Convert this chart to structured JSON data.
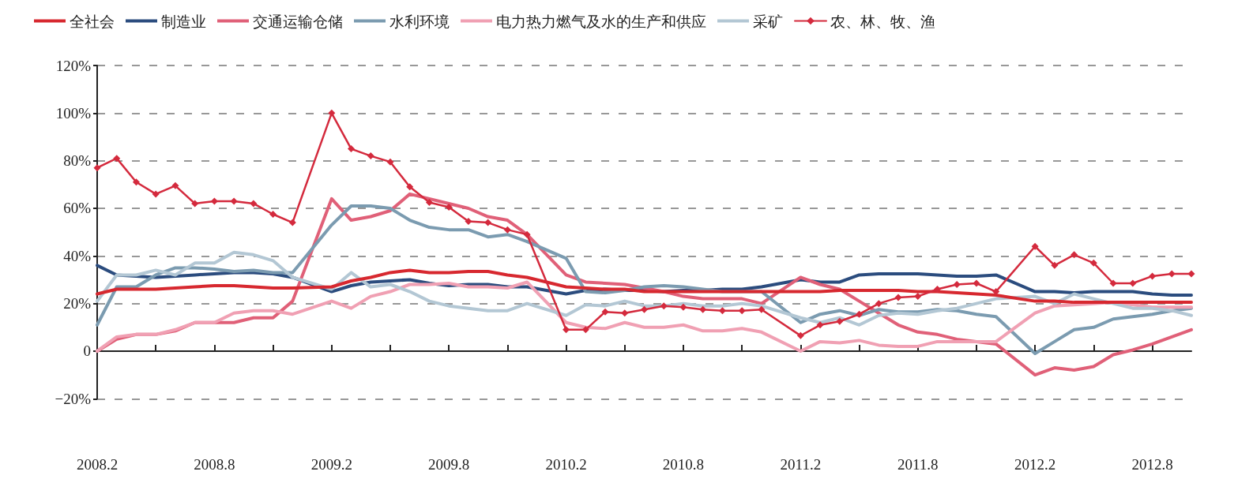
{
  "chart_data": {
    "type": "line",
    "x": [
      "2008-02",
      "2008-03",
      "2008-04",
      "2008-05",
      "2008-06",
      "2008-07",
      "2008-08",
      "2008-09",
      "2008-10",
      "2008-11",
      "2008-12",
      "2009-02",
      "2009-03",
      "2009-04",
      "2009-05",
      "2009-06",
      "2009-07",
      "2009-08",
      "2009-09",
      "2009-10",
      "2009-11",
      "2009-12",
      "2010-02",
      "2010-03",
      "2010-04",
      "2010-05",
      "2010-06",
      "2010-07",
      "2010-08",
      "2010-09",
      "2010-10",
      "2010-11",
      "2010-12",
      "2011-02",
      "2011-03",
      "2011-04",
      "2011-05",
      "2011-06",
      "2011-07",
      "2011-08",
      "2011-09",
      "2011-10",
      "2011-11",
      "2011-12",
      "2012-02",
      "2012-03",
      "2012-04",
      "2012-05",
      "2012-06",
      "2012-07",
      "2012-08",
      "2012-09",
      "2012-10"
    ],
    "series": [
      {
        "name": "全社会",
        "color": "#d7282f",
        "marker": "none",
        "values": [
          24,
          26,
          26,
          26,
          26.5,
          27,
          27.5,
          27.5,
          27,
          26.5,
          26.5,
          27,
          29.5,
          31,
          33,
          34,
          33,
          33,
          33.5,
          33.5,
          32,
          31,
          27,
          26.5,
          26,
          26,
          25,
          25,
          25,
          25,
          25,
          25,
          25,
          25,
          25,
          25.5,
          25.5,
          25.5,
          25.5,
          25,
          25,
          24.5,
          24,
          23.5,
          21,
          21,
          20.5,
          20.5,
          20.5,
          20.5,
          20.5,
          20.5,
          20.5
        ]
      },
      {
        "name": "制造业",
        "color": "#2b4c7e",
        "marker": "none",
        "values": [
          36,
          32,
          31.5,
          31,
          31.5,
          32,
          32.5,
          33,
          33,
          32.5,
          31,
          25,
          27.5,
          29,
          29.5,
          30,
          28.5,
          27.5,
          28,
          28,
          27,
          27,
          24,
          25.5,
          26,
          25.5,
          25.5,
          25,
          25.5,
          25.5,
          26,
          26,
          27,
          30,
          29,
          29,
          32,
          32.5,
          32.5,
          32.5,
          32,
          31.5,
          31.5,
          32,
          25,
          25,
          24.5,
          25,
          25,
          25,
          24,
          23.5,
          23.5
        ]
      },
      {
        "name": "交通运输仓储",
        "color": "#e06078",
        "marker": "none",
        "values": [
          0,
          5,
          7,
          7,
          8.5,
          12,
          12,
          12,
          14,
          14,
          21,
          64,
          55,
          56.5,
          59,
          66,
          64,
          62,
          60,
          56.5,
          55,
          49,
          32,
          29,
          28.5,
          28,
          26.5,
          25,
          23,
          22,
          22,
          22,
          20,
          31,
          28,
          26,
          21,
          16,
          11,
          8,
          7,
          5,
          4,
          3,
          -10,
          -7,
          -8,
          -6.5,
          -1.5,
          0.5,
          3,
          6,
          9
        ]
      },
      {
        "name": "水利环境",
        "color": "#7b9bb0",
        "marker": "none",
        "values": [
          11,
          27,
          27,
          32,
          35,
          35,
          34.5,
          33.5,
          34,
          33,
          33,
          53,
          61,
          61,
          60,
          55,
          52,
          51,
          51,
          48,
          49,
          46,
          39,
          25,
          24.5,
          25.5,
          27,
          27.5,
          27,
          26,
          25,
          25,
          25,
          12,
          15.5,
          17,
          15,
          17.5,
          16.5,
          16.5,
          17.5,
          17,
          15.5,
          14.5,
          -1,
          4,
          9,
          10,
          13.5,
          14.5,
          15.5,
          17,
          18
        ]
      },
      {
        "name": "电力热力燃气及水的生产和供应",
        "color": "#f0a0b3",
        "marker": "none",
        "values": [
          0,
          6,
          7,
          7,
          9,
          12,
          12,
          16,
          17,
          17,
          15.5,
          21,
          18,
          23,
          25,
          28,
          28,
          28.5,
          27,
          27,
          26.5,
          29,
          12,
          10,
          9.5,
          12,
          10,
          10,
          11,
          8.5,
          8.5,
          9.5,
          8,
          0,
          4,
          3.5,
          4.5,
          2.5,
          2,
          2,
          4,
          4,
          4,
          4,
          16,
          19,
          19.5,
          20,
          20.5,
          19.5,
          18.5,
          18.5,
          18.5
        ]
      },
      {
        "name": "采矿",
        "color": "#b3c7d4",
        "marker": "none",
        "values": [
          21,
          32,
          32,
          34,
          32,
          37,
          37,
          41.5,
          40.5,
          38,
          31,
          26,
          33,
          27,
          28,
          25,
          21,
          19,
          18,
          17,
          17,
          20,
          15,
          19.5,
          19,
          21,
          19,
          19,
          20,
          19,
          19,
          20,
          19,
          14,
          12,
          14,
          11,
          15,
          16,
          15.5,
          17,
          18,
          20,
          22,
          23,
          20,
          24,
          22,
          20,
          18,
          18,
          17,
          15
        ]
      },
      {
        "name": "农、林、牧、渔",
        "color": "#d42a3d",
        "marker": "diamond",
        "values": [
          77,
          81,
          71,
          66,
          69.5,
          62,
          63,
          63,
          62,
          57.5,
          54,
          100,
          85,
          82,
          79.5,
          69,
          62.5,
          60.5,
          54.5,
          54,
          51,
          49,
          9,
          9,
          16.5,
          16,
          17.5,
          19,
          18.5,
          17.5,
          17,
          17,
          17.5,
          6.5,
          11,
          12.5,
          15.5,
          20,
          22.5,
          23,
          26,
          28,
          28.5,
          25,
          44,
          36,
          40.5,
          37,
          28.5,
          28.5,
          31.5,
          32.5,
          32.5
        ]
      }
    ],
    "xlim": [
      "2008-02",
      "2012-10"
    ],
    "xticks": [
      {
        "value": "2008-02",
        "label": "2008.2"
      },
      {
        "value": "2008-05",
        "label": null
      },
      {
        "value": "2008-08",
        "label": "2008.8"
      },
      {
        "value": "2008-11",
        "label": null
      },
      {
        "value": "2009-02",
        "label": "2009.2"
      },
      {
        "value": "2009-05",
        "label": null
      },
      {
        "value": "2009-08",
        "label": "2009.8"
      },
      {
        "value": "2009-11",
        "label": null
      },
      {
        "value": "2010-02",
        "label": "2010.2"
      },
      {
        "value": "2010-05",
        "label": null
      },
      {
        "value": "2010-08",
        "label": "2010.8"
      },
      {
        "value": "2010-11",
        "label": null
      },
      {
        "value": "2011-02",
        "label": "2011.2"
      },
      {
        "value": "2011-05",
        "label": null
      },
      {
        "value": "2011-08",
        "label": "2011.8"
      },
      {
        "value": "2011-11",
        "label": null
      },
      {
        "value": "2012-02",
        "label": "2012.2"
      },
      {
        "value": "2012-05",
        "label": null
      },
      {
        "value": "2012-08",
        "label": "2012.8"
      }
    ],
    "ylim": [
      -20,
      120
    ],
    "yticks": [
      {
        "value": -20,
        "label": "−20%"
      },
      0,
      {
        "value": 20,
        "label": "20%"
      },
      {
        "value": 40,
        "label": "40%"
      },
      {
        "value": 60,
        "label": "60%"
      },
      {
        "value": 80,
        "label": "80%"
      },
      {
        "value": 100,
        "label": "100%"
      },
      {
        "value": 120,
        "label": "120%"
      }
    ],
    "grid": "y",
    "legend": "top",
    "line_style": "solid"
  }
}
